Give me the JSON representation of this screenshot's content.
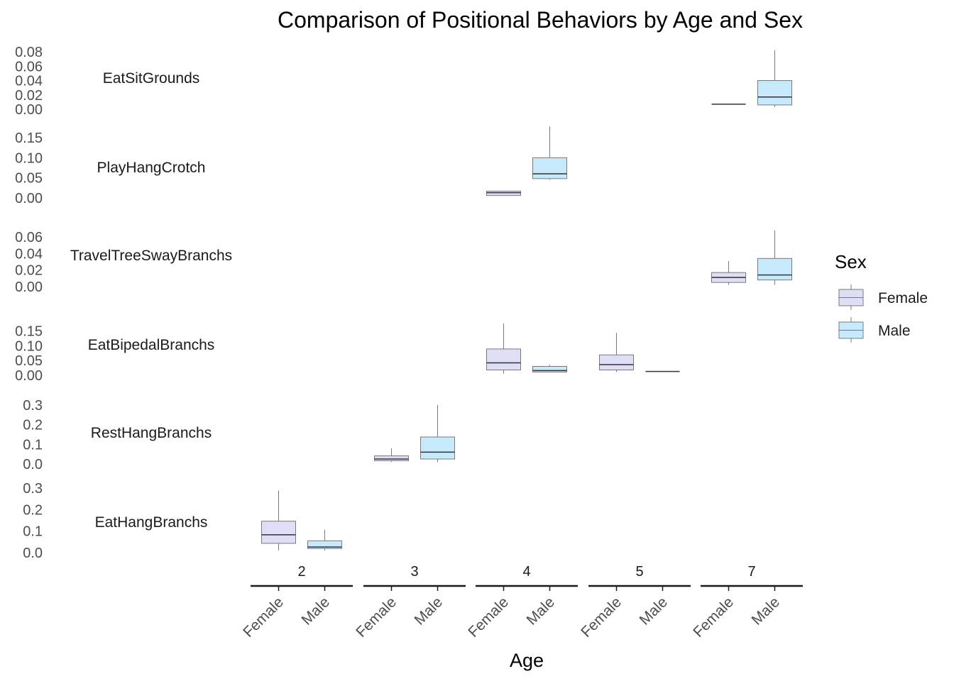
{
  "chart_data": {
    "type": "boxplot",
    "title": "Comparison of Positional Behaviors by Age and Sex",
    "xlabel": "Age",
    "ylabel": "",
    "age_groups": [
      "2",
      "3",
      "4",
      "5",
      "7"
    ],
    "sexes": [
      "Female",
      "Male"
    ],
    "colors": {
      "Female": "#dedef7",
      "Male": "#c6eafb",
      "outline": "#7a7a7a",
      "median": "#333333"
    },
    "legend": {
      "title": "Sex",
      "entries": [
        "Female",
        "Male"
      ],
      "position": "right"
    },
    "grid": false,
    "panels": [
      {
        "name": "EatSitGrounds",
        "ylim": [
          0,
          0.085
        ],
        "yticks": [
          0.0,
          0.02,
          0.04,
          0.06,
          0.08
        ],
        "ytick_labels": [
          "0.00",
          "0.02",
          "0.04",
          "0.06",
          "0.08"
        ],
        "boxes": [
          {
            "age": "7",
            "sex": "Female",
            "min": 0.007,
            "q1": 0.007,
            "median": 0.007,
            "q3": 0.007,
            "max": 0.007
          },
          {
            "age": "7",
            "sex": "Male",
            "min": 0.003,
            "q1": 0.006,
            "median": 0.017,
            "q3": 0.04,
            "max": 0.082
          }
        ]
      },
      {
        "name": "PlayHangCrotch",
        "ylim": [
          0,
          0.18
        ],
        "yticks": [
          0.0,
          0.05,
          0.1,
          0.15
        ],
        "ytick_labels": [
          "0.00",
          "0.05",
          "0.10",
          "0.15"
        ],
        "boxes": [
          {
            "age": "4",
            "sex": "Female",
            "min": 0.006,
            "q1": 0.006,
            "median": 0.013,
            "q3": 0.017,
            "max": 0.017
          },
          {
            "age": "4",
            "sex": "Male",
            "min": 0.045,
            "q1": 0.048,
            "median": 0.06,
            "q3": 0.1,
            "max": 0.178
          }
        ]
      },
      {
        "name": "TravelTreeSwayBranchs",
        "ylim": [
          0,
          0.066
        ],
        "yticks": [
          0.0,
          0.02,
          0.04,
          0.06
        ],
        "ytick_labels": [
          "0.00",
          "0.02",
          "0.04",
          "0.06"
        ],
        "boxes": [
          {
            "age": "7",
            "sex": "Female",
            "min": 0.002,
            "q1": 0.005,
            "median": 0.011,
            "q3": 0.017,
            "max": 0.031
          },
          {
            "age": "7",
            "sex": "Male",
            "min": 0.002,
            "q1": 0.008,
            "median": 0.014,
            "q3": 0.034,
            "max": 0.068
          }
        ]
      },
      {
        "name": "EatBipedalBranchs",
        "ylim": [
          0,
          0.18
        ],
        "yticks": [
          0.0,
          0.05,
          0.1,
          0.15
        ],
        "ytick_labels": [
          "0.00",
          "0.05",
          "0.10",
          "0.15"
        ],
        "boxes": [
          {
            "age": "4",
            "sex": "Female",
            "min": 0.005,
            "q1": 0.018,
            "median": 0.042,
            "q3": 0.089,
            "max": 0.175
          },
          {
            "age": "4",
            "sex": "Male",
            "min": 0.01,
            "q1": 0.011,
            "median": 0.016,
            "q3": 0.03,
            "max": 0.035
          },
          {
            "age": "5",
            "sex": "Female",
            "min": 0.011,
            "q1": 0.018,
            "median": 0.036,
            "q3": 0.069,
            "max": 0.143
          },
          {
            "age": "5",
            "sex": "Male",
            "min": 0.013,
            "q1": 0.013,
            "median": 0.013,
            "q3": 0.013,
            "max": 0.013
          }
        ]
      },
      {
        "name": "RestHangBranchs",
        "ylim": [
          0,
          0.31
        ],
        "yticks": [
          0.0,
          0.1,
          0.2,
          0.3
        ],
        "ytick_labels": [
          "0.0",
          "0.1",
          "0.2",
          "0.3"
        ],
        "boxes": [
          {
            "age": "3",
            "sex": "Female",
            "min": 0.01,
            "q1": 0.016,
            "median": 0.025,
            "q3": 0.041,
            "max": 0.079
          },
          {
            "age": "3",
            "sex": "Male",
            "min": 0.01,
            "q1": 0.025,
            "median": 0.06,
            "q3": 0.137,
            "max": 0.3
          }
        ]
      },
      {
        "name": "EatHangBranchs",
        "ylim": [
          0,
          0.31
        ],
        "yticks": [
          0.0,
          0.1,
          0.2,
          0.3
        ],
        "ytick_labels": [
          "0.0",
          "0.1",
          "0.2",
          "0.3"
        ],
        "boxes": [
          {
            "age": "2",
            "sex": "Female",
            "min": 0.01,
            "q1": 0.043,
            "median": 0.083,
            "q3": 0.146,
            "max": 0.288
          },
          {
            "age": "2",
            "sex": "Male",
            "min": 0.01,
            "q1": 0.019,
            "median": 0.026,
            "q3": 0.055,
            "max": 0.106
          }
        ]
      }
    ]
  }
}
